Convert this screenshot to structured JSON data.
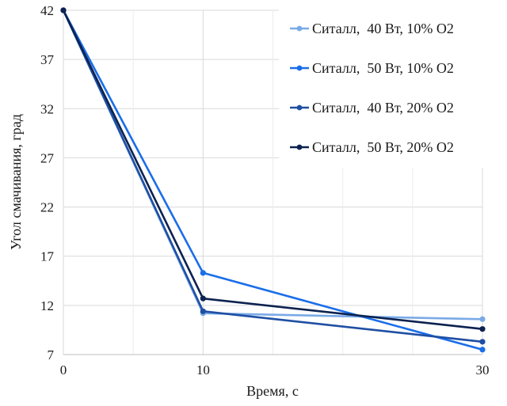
{
  "chart_data": {
    "type": "line",
    "title": "",
    "xlabel": "Время, с",
    "ylabel": "Угол смачивания, град",
    "x": [
      0,
      10,
      30
    ],
    "x_ticks": [
      0,
      10,
      30
    ],
    "x_minor_gridlines": [
      5,
      15,
      20,
      25
    ],
    "xlim": [
      0,
      30
    ],
    "ylim": [
      7,
      42
    ],
    "y_ticks": [
      7,
      12,
      17,
      22,
      27,
      32,
      37,
      42
    ],
    "grid": true,
    "legend_position": "top-right",
    "series": [
      {
        "name": "Ситалл,  40 Вт, 10% О2",
        "color": "#7aaae6",
        "values": [
          42,
          11.2,
          10.6
        ]
      },
      {
        "name": "Ситалл,  50 Вт, 10% О2",
        "color": "#1a6ee8",
        "values": [
          42,
          15.3,
          7.5
        ]
      },
      {
        "name": "Ситалл,  40 Вт, 20% О2",
        "color": "#1f4fa3",
        "values": [
          42,
          11.4,
          8.3
        ]
      },
      {
        "name": "Ситалл,  50 Вт, 20% О2",
        "color": "#0c2250",
        "values": [
          42,
          12.7,
          9.6
        ]
      }
    ]
  }
}
